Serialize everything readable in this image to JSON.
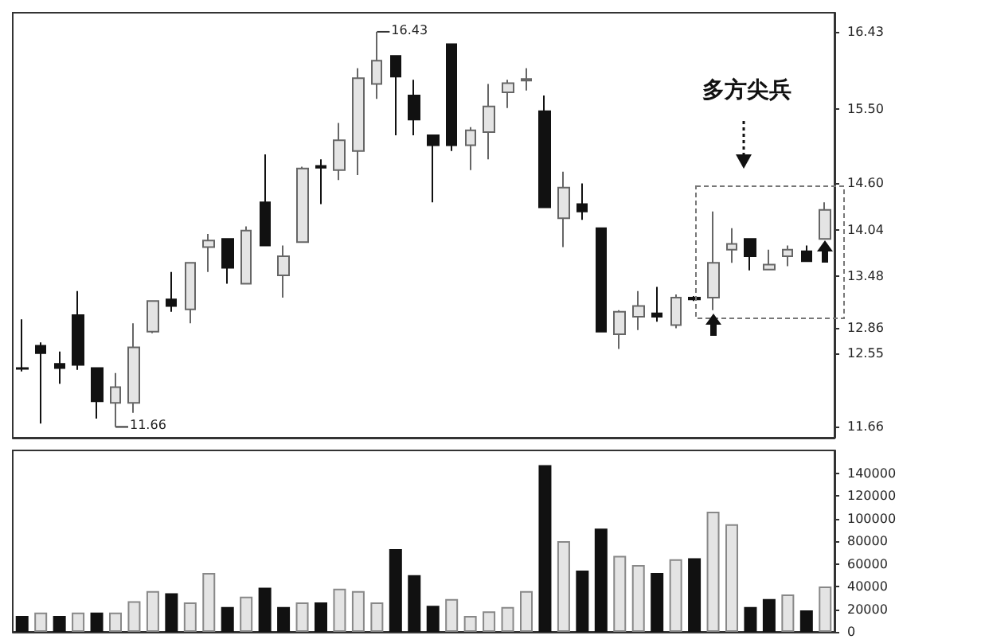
{
  "chart_data": [
    {
      "type": "candlestick",
      "categories": [
        null,
        null,
        null,
        null,
        null,
        null,
        null,
        null,
        null,
        null,
        null,
        null,
        null,
        null,
        null,
        null,
        null,
        null,
        null,
        null,
        null,
        null,
        null,
        null,
        null,
        null,
        null,
        null,
        null,
        null,
        null,
        null,
        null,
        null,
        null,
        null,
        null,
        null,
        null,
        null,
        null,
        null,
        null,
        null
      ],
      "ohlc": [
        [
          12.37,
          12.96,
          12.33,
          12.36
        ],
        [
          12.64,
          12.68,
          11.7,
          12.55
        ],
        [
          12.42,
          12.57,
          12.18,
          12.37
        ],
        [
          13.01,
          13.3,
          12.35,
          12.41
        ],
        [
          12.37,
          12.37,
          11.76,
          11.97
        ],
        [
          11.95,
          12.31,
          11.66,
          12.14
        ],
        [
          11.95,
          12.91,
          11.83,
          12.62
        ],
        [
          12.81,
          13.18,
          12.79,
          13.18
        ],
        [
          13.2,
          13.53,
          13.05,
          13.12
        ],
        [
          13.08,
          13.64,
          12.91,
          13.64
        ],
        [
          13.83,
          13.99,
          13.53,
          13.91
        ],
        [
          13.93,
          13.93,
          13.39,
          13.58
        ],
        [
          13.39,
          14.08,
          13.39,
          14.03
        ],
        [
          14.37,
          14.95,
          13.85,
          13.85
        ],
        [
          13.49,
          13.85,
          13.22,
          13.72
        ],
        [
          13.89,
          14.8,
          13.89,
          14.78
        ],
        [
          14.81,
          14.89,
          14.35,
          14.79
        ],
        [
          14.76,
          15.33,
          14.64,
          15.12
        ],
        [
          14.99,
          15.99,
          14.7,
          15.87
        ],
        [
          15.8,
          16.43,
          15.62,
          16.08
        ],
        [
          16.14,
          16.14,
          15.18,
          15.89
        ],
        [
          15.66,
          15.85,
          15.18,
          15.37
        ],
        [
          15.18,
          15.18,
          14.37,
          15.06
        ],
        [
          16.28,
          16.28,
          14.99,
          15.06
        ],
        [
          15.06,
          15.28,
          14.76,
          15.24
        ],
        [
          15.22,
          15.8,
          14.89,
          15.53
        ],
        [
          15.7,
          15.85,
          15.51,
          15.81
        ],
        [
          15.84,
          15.99,
          15.72,
          15.86
        ],
        [
          15.47,
          15.66,
          14.31,
          14.31
        ],
        [
          14.18,
          14.74,
          13.83,
          14.55
        ],
        [
          14.35,
          14.6,
          14.16,
          14.26
        ],
        [
          14.06,
          14.06,
          12.81,
          12.81
        ],
        [
          12.78,
          13.07,
          12.6,
          13.05
        ],
        [
          12.99,
          13.3,
          12.83,
          13.12
        ],
        [
          13.03,
          13.35,
          12.93,
          12.99
        ],
        [
          12.89,
          13.26,
          12.85,
          13.22
        ],
        [
          13.22,
          13.24,
          13.18,
          13.2
        ],
        [
          13.22,
          14.26,
          13.07,
          13.64
        ],
        [
          13.8,
          14.06,
          13.64,
          13.87
        ],
        [
          13.93,
          13.93,
          13.55,
          13.72
        ],
        [
          13.56,
          13.8,
          13.56,
          13.62
        ],
        [
          13.72,
          13.85,
          13.6,
          13.8
        ],
        [
          13.78,
          13.85,
          13.66,
          13.66
        ],
        [
          13.93,
          14.37,
          13.93,
          14.28
        ]
      ],
      "colors": [
        "#111111",
        "#111111",
        "#111111",
        "#111111",
        "#111111",
        "#e4e4e4",
        "#e4e4e4",
        "#e4e4e4",
        "#111111",
        "#e4e4e4",
        "#e4e4e4",
        "#111111",
        "#e4e4e4",
        "#111111",
        "#e4e4e4",
        "#e4e4e4",
        "#111111",
        "#e4e4e4",
        "#e4e4e4",
        "#e4e4e4",
        "#111111",
        "#111111",
        "#111111",
        "#111111",
        "#e4e4e4",
        "#e4e4e4",
        "#e4e4e4",
        "#e4e4e4",
        "#111111",
        "#e4e4e4",
        "#111111",
        "#111111",
        "#e4e4e4",
        "#e4e4e4",
        "#111111",
        "#e4e4e4",
        "#111111",
        "#e4e4e4",
        "#e4e4e4",
        "#111111",
        "#e4e4e4",
        "#e4e4e4",
        "#111111",
        "#e4e4e4"
      ],
      "ylim": [
        11.53,
        16.66
      ],
      "yticks": [
        11.66,
        12.55,
        12.86,
        13.48,
        14.04,
        {
          "value": 14.6,
          "label": "14.60"
        },
        {
          "value": 15.5,
          "label": "15.50"
        },
        16.43
      ],
      "annotations": [
        "多方尖兵",
        "16.43",
        "11.66"
      ],
      "grid": false,
      "tick_labels": "y"
    },
    {
      "type": "bar",
      "categories": [
        null,
        null,
        null,
        null,
        null,
        null,
        null,
        null,
        null,
        null,
        null,
        null,
        null,
        null,
        null,
        null,
        null,
        null,
        null,
        null,
        null,
        null,
        null,
        null,
        null,
        null,
        null,
        null,
        null,
        null,
        null,
        null,
        null,
        null,
        null,
        null,
        null,
        null,
        null,
        null,
        null,
        null,
        null,
        null
      ],
      "values": [
        14000,
        17000,
        14000,
        17000,
        17000,
        17000,
        27000,
        36000,
        34000,
        26000,
        52000,
        22000,
        31000,
        39000,
        22000,
        26000,
        26000,
        38000,
        36000,
        26000,
        73000,
        50000,
        23000,
        29000,
        14000,
        18000,
        22000,
        36000,
        147000,
        80000,
        54000,
        91000,
        67000,
        59000,
        52000,
        64000,
        65000,
        106000,
        95000,
        22000,
        29000,
        33000,
        19000,
        40000
      ],
      "colors": [
        "#111111",
        "#e4e4e4",
        "#111111",
        "#e4e4e4",
        "#111111",
        "#e4e4e4",
        "#e4e4e4",
        "#e4e4e4",
        "#111111",
        "#e4e4e4",
        "#e4e4e4",
        "#111111",
        "#e4e4e4",
        "#111111",
        "#111111",
        "#e4e4e4",
        "#111111",
        "#e4e4e4",
        "#e4e4e4",
        "#e4e4e4",
        "#111111",
        "#111111",
        "#111111",
        "#e4e4e4",
        "#e4e4e4",
        "#e4e4e4",
        "#e4e4e4",
        "#e4e4e4",
        "#111111",
        "#e4e4e4",
        "#111111",
        "#111111",
        "#e4e4e4",
        "#e4e4e4",
        "#111111",
        "#e4e4e4",
        "#111111",
        "#e4e4e4",
        "#e4e4e4",
        "#111111",
        "#111111",
        "#e4e4e4",
        "#111111",
        "#e4e4e4"
      ],
      "ylim": [
        0,
        160000
      ],
      "yticks": [
        0,
        20000,
        40000,
        60000,
        80000,
        100000,
        120000,
        140000
      ],
      "grid": false,
      "tick_labels": "y"
    }
  ]
}
